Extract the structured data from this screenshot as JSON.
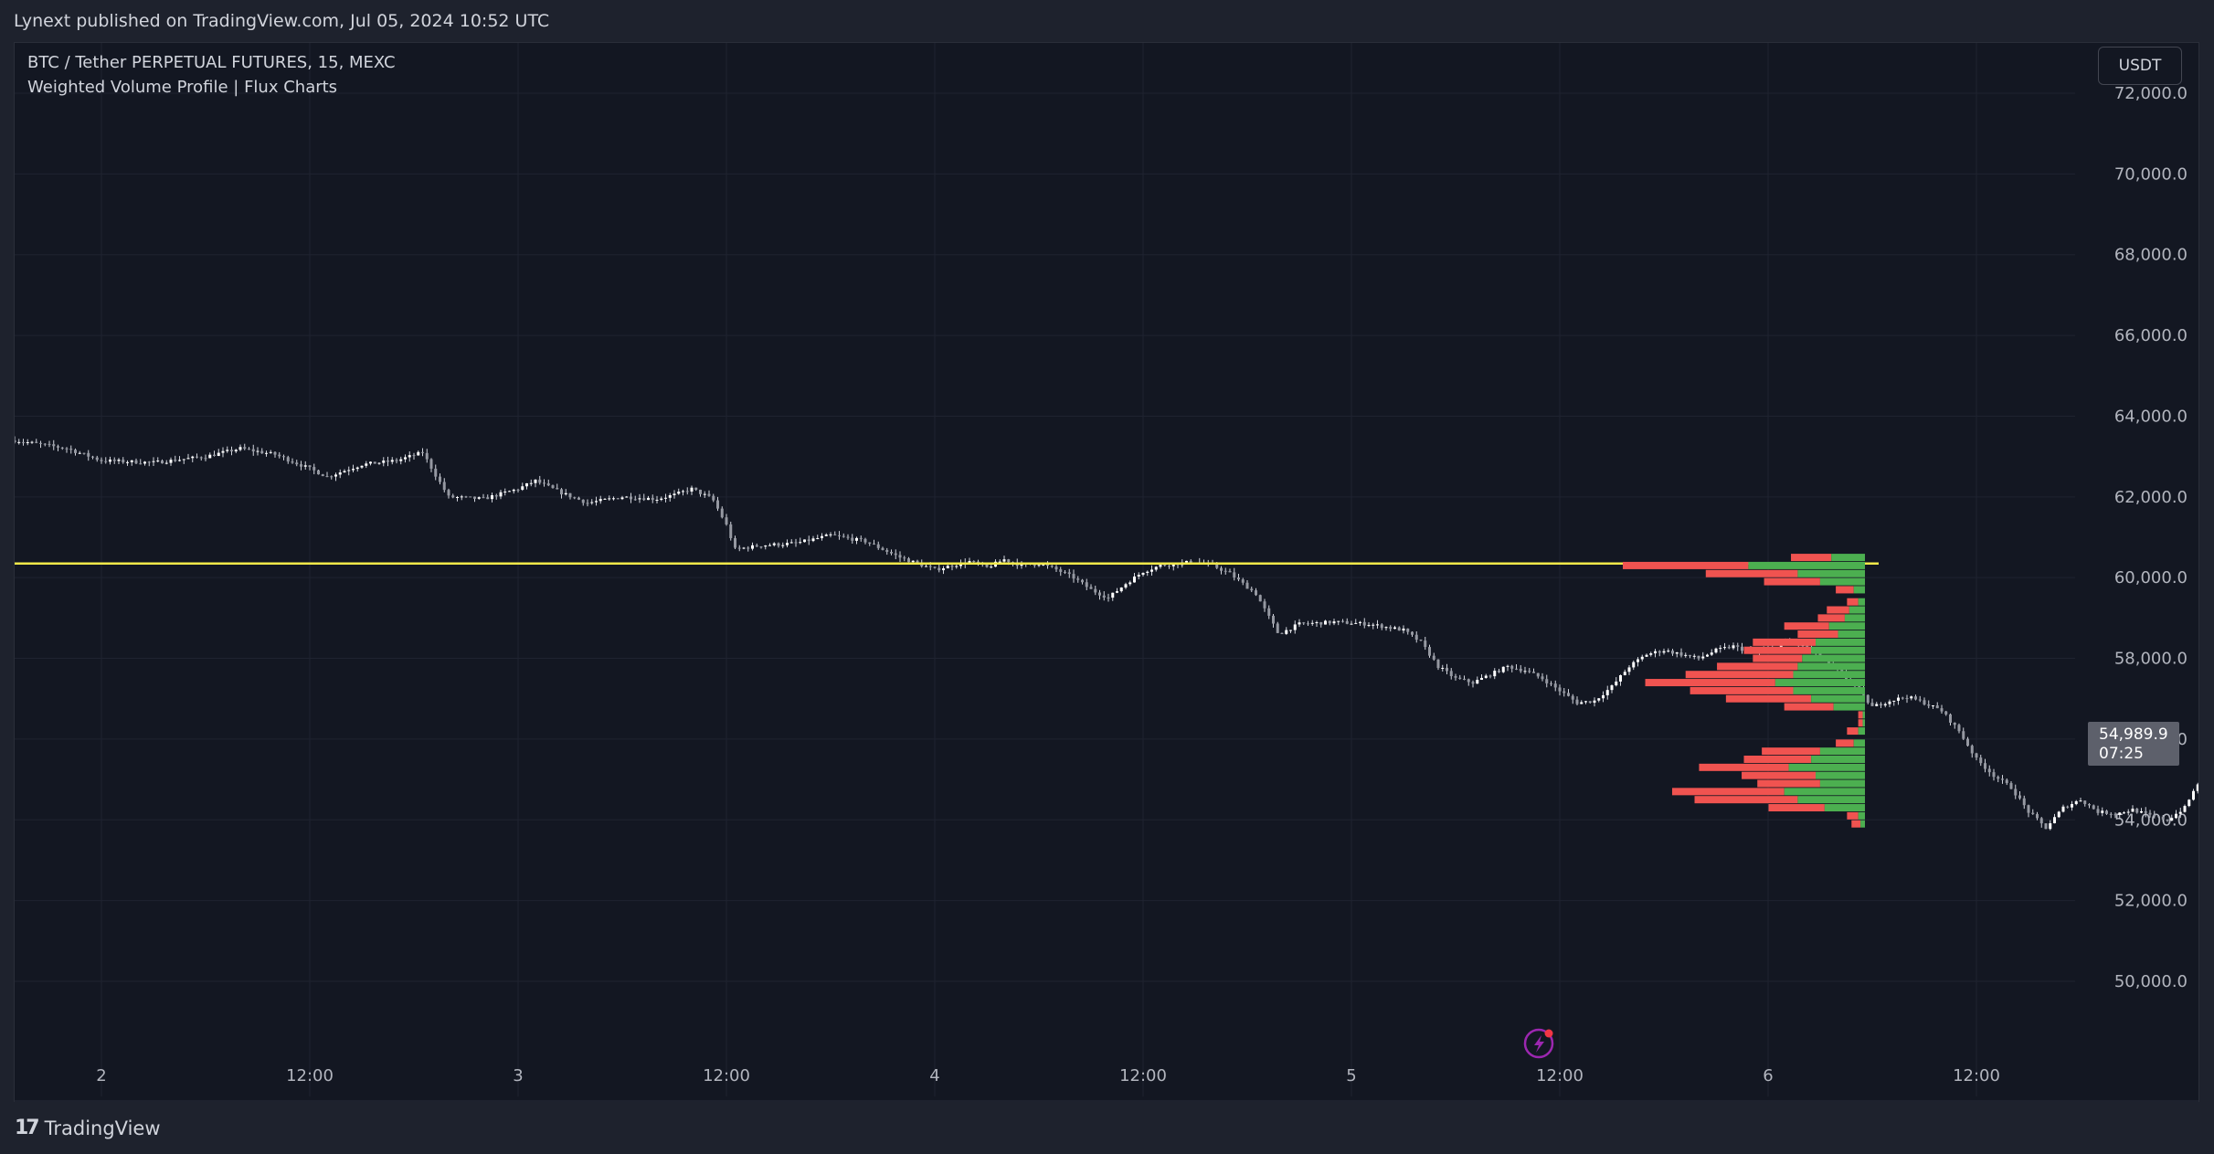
{
  "header": {
    "published": "Lynext published on TradingView.com, Jul 05, 2024 10:52 UTC"
  },
  "legend": {
    "symbol": "BTC / Tether PERPETUAL FUTURES, 15, MEXC",
    "indicator": "Weighted Volume Profile | Flux Charts"
  },
  "currency_button": "USDT",
  "price_tag": {
    "price": "54,989.9",
    "countdown": "07:25"
  },
  "footer": {
    "brand": "TradingView"
  },
  "colors": {
    "background": "#131722",
    "grid": "#1f2330",
    "candle": "#d1d4dc",
    "poc_line": "#f0e84a",
    "sell_volume": "#f05350",
    "buy_volume": "#4caf50",
    "lightning": "#9c27b0",
    "text": "#b2b5be"
  },
  "chart_data": {
    "type": "candlestick",
    "y_axis": {
      "min": 48000,
      "max": 73000,
      "ticks": [
        "72,000.0",
        "70,000.0",
        "68,000.0",
        "66,000.0",
        "64,000.0",
        "62,000.0",
        "60,000.0",
        "58,000.0",
        "56,000.0",
        "54,000.0",
        "52,000.0",
        "50,000.0"
      ],
      "tick_values": [
        72000,
        70000,
        68000,
        66000,
        64000,
        62000,
        60000,
        58000,
        56000,
        54000,
        52000,
        50000
      ]
    },
    "x_axis": {
      "ticks": [
        "2",
        "12:00",
        "3",
        "12:00",
        "4",
        "12:00",
        "5",
        "12:00",
        "6",
        "12:00"
      ],
      "tick_values": [
        0,
        12,
        24,
        36,
        48,
        60,
        72,
        84,
        96,
        108
      ],
      "unit": "hours since Jul 2 00:00",
      "range": [
        -5,
        125
      ]
    },
    "price_path": [
      [
        -5,
        63400
      ],
      [
        -2,
        63200
      ],
      [
        0,
        62900
      ],
      [
        3,
        62850
      ],
      [
        6,
        63000
      ],
      [
        8,
        63200
      ],
      [
        10,
        63050
      ],
      [
        12,
        62700
      ],
      [
        13,
        62500
      ],
      [
        15,
        62800
      ],
      [
        17,
        62900
      ],
      [
        18.5,
        63100
      ],
      [
        19.3,
        62500
      ],
      [
        20,
        62000
      ],
      [
        22,
        61950
      ],
      [
        24,
        62200
      ],
      [
        25,
        62400
      ],
      [
        26.5,
        62100
      ],
      [
        28,
        61850
      ],
      [
        30,
        62000
      ],
      [
        32,
        61950
      ],
      [
        33,
        62050
      ],
      [
        34,
        62200
      ],
      [
        35.2,
        61950
      ],
      [
        36,
        61300
      ],
      [
        36.5,
        60700
      ],
      [
        38,
        60800
      ],
      [
        40,
        60850
      ],
      [
        42,
        61050
      ],
      [
        44,
        60900
      ],
      [
        45,
        60700
      ],
      [
        46,
        60500
      ],
      [
        47,
        60350
      ],
      [
        48,
        60200
      ],
      [
        49,
        60300
      ],
      [
        50,
        60400
      ],
      [
        51,
        60250
      ],
      [
        52,
        60450
      ],
      [
        53,
        60300
      ],
      [
        54,
        60350
      ],
      [
        55,
        60200
      ],
      [
        56,
        60000
      ],
      [
        57,
        59700
      ],
      [
        58,
        59500
      ],
      [
        59,
        59850
      ],
      [
        60,
        60150
      ],
      [
        61,
        60300
      ],
      [
        62,
        60350
      ],
      [
        63,
        60400
      ],
      [
        64,
        60300
      ],
      [
        65,
        60100
      ],
      [
        66.5,
        59600
      ],
      [
        67.8,
        58600
      ],
      [
        69,
        58850
      ],
      [
        71,
        58900
      ],
      [
        73,
        58850
      ],
      [
        75,
        58700
      ],
      [
        76,
        58400
      ],
      [
        77,
        57800
      ],
      [
        78,
        57500
      ],
      [
        79,
        57400
      ],
      [
        80,
        57600
      ],
      [
        81,
        57800
      ],
      [
        82,
        57700
      ],
      [
        83,
        57500
      ],
      [
        84,
        57200
      ],
      [
        85,
        56900
      ],
      [
        86,
        56950
      ],
      [
        87,
        57300
      ],
      [
        88,
        57800
      ],
      [
        89,
        58100
      ],
      [
        90,
        58200
      ],
      [
        91,
        58100
      ],
      [
        92,
        58000
      ],
      [
        93,
        58200
      ],
      [
        94,
        58300
      ],
      [
        95,
        58150
      ],
      [
        96,
        58200
      ],
      [
        97,
        58400
      ],
      [
        98,
        58300
      ],
      [
        99,
        58000
      ],
      [
        100,
        57700
      ],
      [
        101,
        57300
      ],
      [
        102,
        56800
      ],
      [
        103,
        56950
      ],
      [
        104,
        57050
      ],
      [
        105,
        56900
      ],
      [
        106,
        56700
      ],
      [
        107,
        56200
      ],
      [
        108,
        55500
      ],
      [
        109,
        55100
      ],
      [
        110,
        54800
      ],
      [
        111,
        54200
      ],
      [
        112,
        53800
      ],
      [
        113,
        54300
      ],
      [
        114,
        54500
      ],
      [
        115,
        54200
      ],
      [
        116,
        54150
      ],
      [
        117,
        54250
      ],
      [
        118,
        54100
      ],
      [
        119,
        54000
      ],
      [
        120,
        54300
      ],
      [
        120.5,
        54700
      ],
      [
        121,
        55100
      ],
      [
        121.5,
        54900
      ],
      [
        122,
        54989.9
      ]
    ],
    "poc_price": 60350,
    "volume_profile": {
      "max_total": 1,
      "rows": [
        {
          "price": 60500,
          "sell": 0.18,
          "buy": 0.15
        },
        {
          "price": 60300,
          "sell": 0.56,
          "buy": 0.52
        },
        {
          "price": 60100,
          "sell": 0.41,
          "buy": 0.3
        },
        {
          "price": 59900,
          "sell": 0.25,
          "buy": 0.2
        },
        {
          "price": 59700,
          "sell": 0.08,
          "buy": 0.05
        },
        {
          "price": 59400,
          "sell": 0.05,
          "buy": 0.03
        },
        {
          "price": 59200,
          "sell": 0.1,
          "buy": 0.07
        },
        {
          "price": 59000,
          "sell": 0.12,
          "buy": 0.09
        },
        {
          "price": 58800,
          "sell": 0.2,
          "buy": 0.16
        },
        {
          "price": 58600,
          "sell": 0.18,
          "buy": 0.12
        },
        {
          "price": 58400,
          "sell": 0.28,
          "buy": 0.22
        },
        {
          "price": 58200,
          "sell": 0.3,
          "buy": 0.24
        },
        {
          "price": 58000,
          "sell": 0.22,
          "buy": 0.28
        },
        {
          "price": 57800,
          "sell": 0.36,
          "buy": 0.3
        },
        {
          "price": 57600,
          "sell": 0.48,
          "buy": 0.32
        },
        {
          "price": 57400,
          "sell": 0.58,
          "buy": 0.4
        },
        {
          "price": 57200,
          "sell": 0.46,
          "buy": 0.32
        },
        {
          "price": 57000,
          "sell": 0.38,
          "buy": 0.24
        },
        {
          "price": 56800,
          "sell": 0.22,
          "buy": 0.14
        },
        {
          "price": 56600,
          "sell": 0.02,
          "buy": 0.01
        },
        {
          "price": 56400,
          "sell": 0.02,
          "buy": 0.01
        },
        {
          "price": 56200,
          "sell": 0.05,
          "buy": 0.03
        },
        {
          "price": 55900,
          "sell": 0.08,
          "buy": 0.05
        },
        {
          "price": 55700,
          "sell": 0.26,
          "buy": 0.2
        },
        {
          "price": 55500,
          "sell": 0.3,
          "buy": 0.24
        },
        {
          "price": 55300,
          "sell": 0.4,
          "buy": 0.34
        },
        {
          "price": 55100,
          "sell": 0.33,
          "buy": 0.22
        },
        {
          "price": 54900,
          "sell": 0.28,
          "buy": 0.2
        },
        {
          "price": 54700,
          "sell": 0.5,
          "buy": 0.36
        },
        {
          "price": 54500,
          "sell": 0.46,
          "buy": 0.3
        },
        {
          "price": 54300,
          "sell": 0.25,
          "buy": 0.18
        },
        {
          "price": 54100,
          "sell": 0.05,
          "buy": 0.03
        },
        {
          "price": 53900,
          "sell": 0.04,
          "buy": 0.02
        }
      ]
    }
  }
}
